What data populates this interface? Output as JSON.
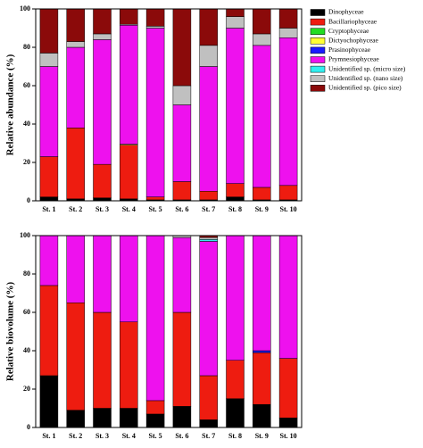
{
  "chart_data": [
    {
      "type": "stacked-bar",
      "y_label": "Relative abundance (%)",
      "categories": [
        "St. 1",
        "St. 2",
        "St. 3",
        "St. 4",
        "St. 5",
        "St. 6",
        "St. 7",
        "St. 8",
        "St. 9",
        "St. 10"
      ],
      "ylim": [
        0,
        100
      ],
      "yticks": [
        0,
        20,
        40,
        60,
        80,
        100
      ],
      "legend": "right",
      "series": [
        {
          "name": "Dinophyceae",
          "color": "#000000",
          "values": [
            2,
            1,
            1.5,
            1,
            0.5,
            0.5,
            0.5,
            2,
            0.5,
            0.5
          ]
        },
        {
          "name": "Bacillariophyceae",
          "color": "#ee1c10",
          "values": [
            21,
            37,
            17.5,
            28,
            1.5,
            9.5,
            4.5,
            7,
            6.5,
            7.5
          ]
        },
        {
          "name": "Cryptophyceae",
          "color": "#22dd22",
          "values": [
            0,
            0,
            0,
            0,
            0,
            0,
            0,
            0,
            0,
            0
          ]
        },
        {
          "name": "Dictyochophyceae",
          "color": "#ffff33",
          "values": [
            0,
            0,
            0,
            0.5,
            0,
            0,
            0,
            0,
            0,
            0
          ]
        },
        {
          "name": "Prasinophyceae",
          "color": "#1a1aff",
          "values": [
            0,
            0,
            0,
            0,
            0,
            0,
            0,
            0,
            0,
            0
          ]
        },
        {
          "name": "Prymnesiophyceae",
          "color": "#ee11ee",
          "values": [
            47,
            42,
            65,
            62,
            88,
            40,
            65,
            81,
            74,
            77
          ]
        },
        {
          "name": "Unidentified sp. (micro size)",
          "color": "#33eeee",
          "values": [
            0,
            0,
            0,
            0,
            0,
            0,
            0,
            0,
            0,
            0
          ]
        },
        {
          "name": "Unidentified sp. (nano size)",
          "color": "#c0c0c0",
          "values": [
            7,
            3,
            3,
            0.5,
            1,
            10,
            11,
            6,
            6,
            5
          ]
        },
        {
          "name": "Unidentified sp. (pico size)",
          "color": "#8b0a0a",
          "values": [
            23,
            17,
            13,
            8,
            9,
            40,
            19,
            4,
            13,
            10
          ]
        }
      ]
    },
    {
      "type": "stacked-bar",
      "y_label": "Relative biovolume (%)",
      "categories": [
        "St. 1",
        "St. 2",
        "St. 3",
        "St. 4",
        "St. 5",
        "St. 6",
        "St. 7",
        "St. 8",
        "St. 9",
        "St. 10"
      ],
      "ylim": [
        0,
        100
      ],
      "yticks": [
        0,
        20,
        40,
        60,
        80,
        100
      ],
      "series": [
        {
          "color": "#000000",
          "values": [
            27,
            9,
            10,
            10,
            7,
            11,
            4,
            15,
            12,
            5
          ]
        },
        {
          "color": "#ee1c10",
          "values": [
            47,
            56,
            50,
            45,
            7,
            49,
            23,
            20,
            27,
            31
          ]
        },
        {
          "color": "#22dd22",
          "values": [
            0,
            0,
            0,
            0,
            0,
            0,
            0,
            0,
            0,
            0
          ]
        },
        {
          "color": "#ffff33",
          "values": [
            0,
            0,
            0,
            0,
            0,
            0,
            0,
            0,
            0,
            0
          ]
        },
        {
          "color": "#1a1aff",
          "values": [
            0,
            0,
            0,
            0,
            0,
            0,
            0,
            0,
            1,
            0
          ]
        },
        {
          "color": "#ee11ee",
          "values": [
            26,
            35,
            40,
            45,
            86,
            39,
            70,
            65,
            60,
            64
          ]
        },
        {
          "color": "#33eeee",
          "values": [
            0,
            0,
            0,
            0,
            0,
            0,
            1,
            0,
            0,
            0
          ]
        },
        {
          "color": "#c0c0c0",
          "values": [
            0,
            0,
            0,
            0,
            0,
            1,
            1,
            0,
            0,
            0
          ]
        },
        {
          "color": "#8b0a0a",
          "values": [
            0,
            0,
            0,
            0,
            0,
            0,
            1,
            0,
            0,
            0
          ]
        }
      ]
    }
  ]
}
